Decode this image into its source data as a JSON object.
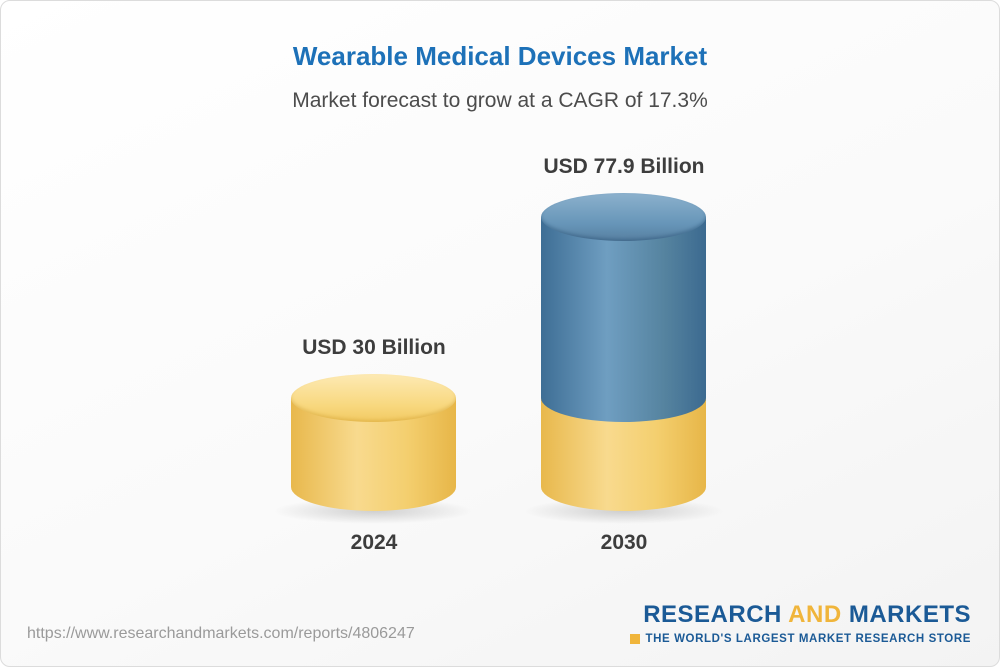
{
  "header": {
    "title": "Wearable Medical Devices Market",
    "subtitle": "Market forecast to grow at a CAGR of 17.3%"
  },
  "chart_data": {
    "type": "bar",
    "style": "3d-cylinder",
    "title": "Wearable Medical Devices Market",
    "subtitle": "Market forecast to grow at a CAGR of 17.3%",
    "unit": "USD Billion",
    "categories": [
      "2024",
      "2030"
    ],
    "values": [
      30,
      77.9
    ],
    "value_labels": [
      "USD 30 Billion",
      "USD 77.9 Billion"
    ],
    "ylim": [
      0,
      80
    ],
    "grid": false,
    "legend": false,
    "colors": {
      "base_segment": "#f2cb68",
      "growth_segment": "#4c80a9",
      "title_blue": "#1d71b8"
    }
  },
  "footer": {
    "url": "https://www.researchandmarkets.com/reports/4806247",
    "logo": {
      "word1": "RESEARCH",
      "word2": "AND",
      "word3": "MARKETS",
      "tagline": "THE WORLD'S LARGEST MARKET RESEARCH STORE"
    }
  }
}
